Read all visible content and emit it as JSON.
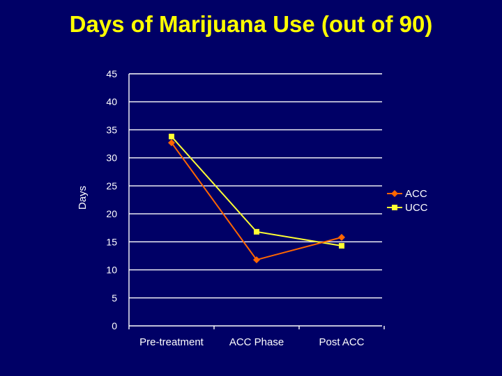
{
  "chart_data": {
    "type": "line",
    "title": "Days of Marijuana Use (out of 90)",
    "xlabel": "",
    "ylabel": "Days",
    "categories": [
      "Pre-treatment",
      "ACC Phase",
      "Post ACC"
    ],
    "ylim": [
      0,
      45
    ],
    "yticks": [
      0,
      5,
      10,
      15,
      20,
      25,
      30,
      35,
      40,
      45
    ],
    "grid": true,
    "legend": "right",
    "series": [
      {
        "name": "ACC",
        "values": [
          32.7,
          11.8,
          15.8
        ],
        "color": "#FF6600",
        "marker": "diamond"
      },
      {
        "name": "UCC",
        "values": [
          33.8,
          16.8,
          14.3
        ],
        "color": "#FFFF33",
        "marker": "square"
      }
    ]
  },
  "colors": {
    "background": "#000066",
    "title": "#FFFF00",
    "text": "#FFFFFF",
    "axis": "#FFFFFF"
  }
}
